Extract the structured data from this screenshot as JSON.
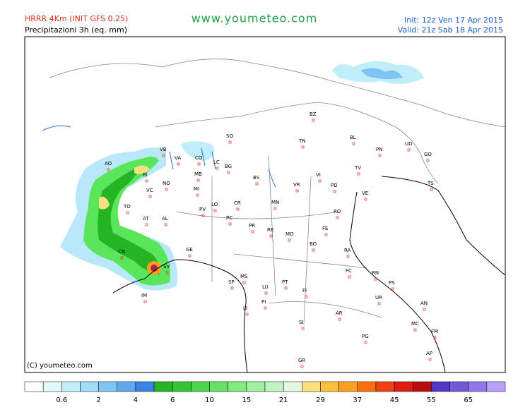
{
  "header": {
    "model": "HRRR 4Km (INIT GFS 0.25)",
    "product": "Precipitazioni 3h (eq. mm)",
    "site": "www.youmeteo.com",
    "init": "Init: 12z Ven  17 Apr 2015",
    "valid": "Valid: 21z Sab  18 Apr 2015"
  },
  "cities": [
    "BZ",
    "TN",
    "SO",
    "BL",
    "PN",
    "UD",
    "GO",
    "TS",
    "AO",
    "VB",
    "VA",
    "CO",
    "LC",
    "BG",
    "BI",
    "NO",
    "MB",
    "MI",
    "BS",
    "VI",
    "TV",
    "VR",
    "PD",
    "VE",
    "VC",
    "TO",
    "PV",
    "LO",
    "CR",
    "MN",
    "RO",
    "AT",
    "AL",
    "PC",
    "PR",
    "RE",
    "MO",
    "FE",
    "CN",
    "GE",
    "BO",
    "RA",
    "SV",
    "FC",
    "RN",
    "MS",
    "SP",
    "PS",
    "IM",
    "LU",
    "PT",
    "FI",
    "PI",
    "UR",
    "AN",
    "LI",
    "AR",
    "SI",
    "MC",
    "PG",
    "FM",
    "AP",
    "GR"
  ],
  "copyright": "(C) youmeteo.com",
  "legend": {
    "labels": [
      0.6,
      2,
      4,
      6,
      10,
      15,
      21,
      29,
      37,
      45,
      55,
      65
    ]
  }
}
